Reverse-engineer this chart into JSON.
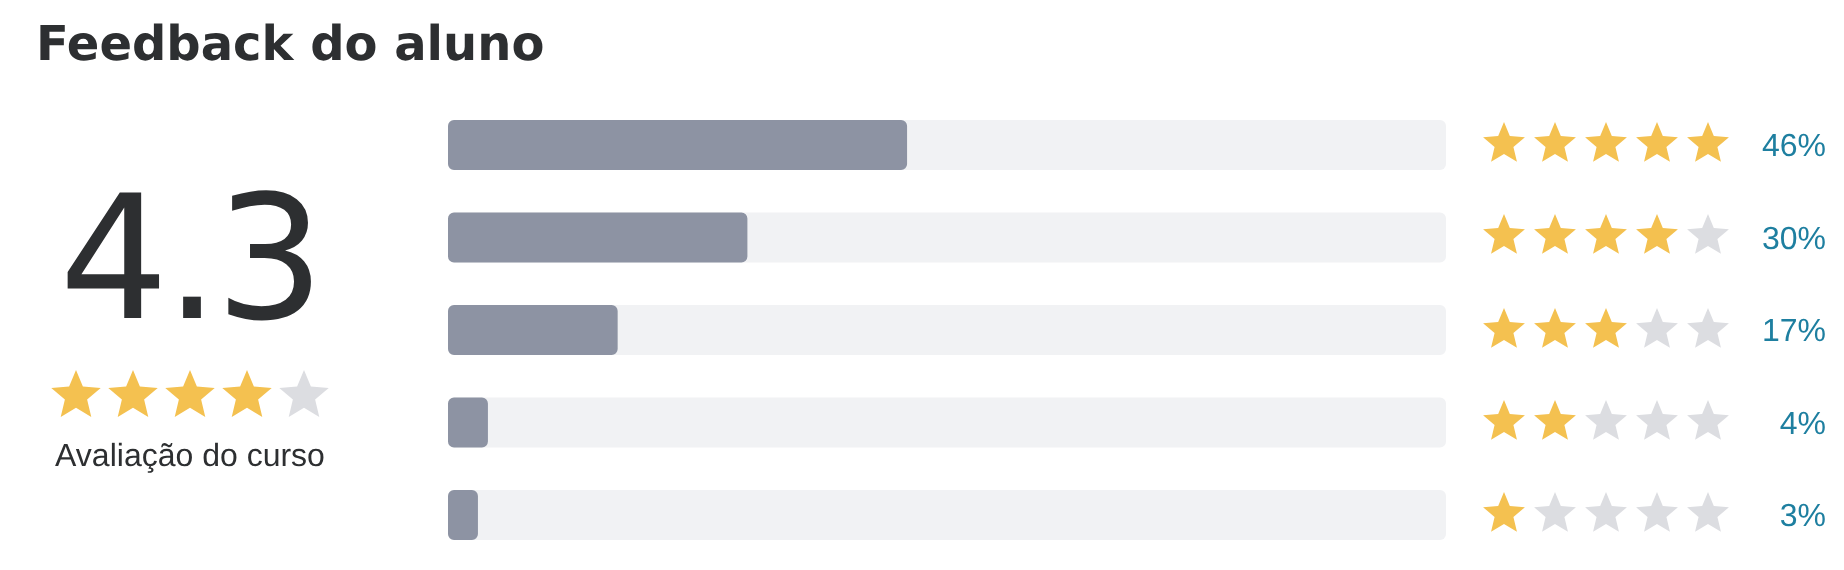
{
  "chart_data": {
    "type": "bar",
    "orientation": "horizontal",
    "title": "Feedback do aluno",
    "categories": [
      null,
      null,
      null,
      null,
      null
    ],
    "series": [
      {
        "color": "#8d93a3",
        "values": [
          46,
          30,
          17,
          4,
          3
        ],
        "value_labels": [
          "46%",
          "30%",
          "17%",
          "4%",
          "3%"
        ]
      }
    ],
    "tick_labels": false,
    "annotations": [
      "4.3",
      "Avaliação do curso"
    ]
  }
}
